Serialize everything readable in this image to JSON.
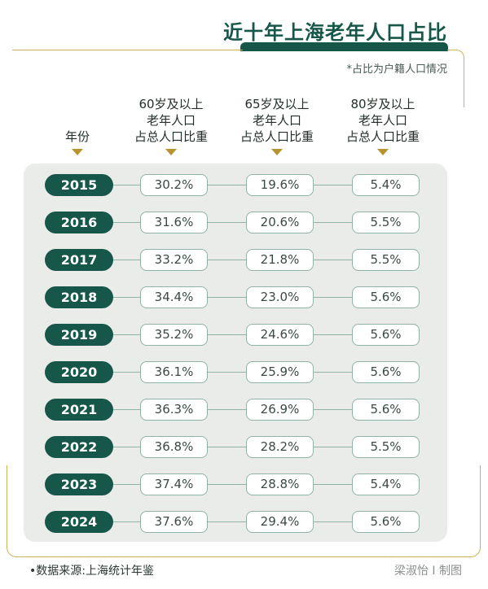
{
  "title": "近十年上海老年人口占比",
  "note": "*占比为户籍人口情况",
  "source": "•数据来源:上海统计年鉴",
  "credit": "梁淑怡 I 制图",
  "colors": {
    "primary": "#17574a",
    "accent": "#b8932f",
    "panel": "#eaecea",
    "border": "#8fb3a6"
  },
  "chart_data": {
    "type": "table",
    "columns": [
      "年份",
      "60岁及以上\n老年人口\n占总人口比重",
      "65岁及以上\n老年人口\n占总人口比重",
      "80岁及以上\n老年人口\n占总人口比重"
    ],
    "rows": [
      [
        "2015",
        "30.2%",
        "19.6%",
        "5.4%"
      ],
      [
        "2016",
        "31.6%",
        "20.6%",
        "5.5%"
      ],
      [
        "2017",
        "33.2%",
        "21.8%",
        "5.5%"
      ],
      [
        "2018",
        "34.4%",
        "23.0%",
        "5.6%"
      ],
      [
        "2019",
        "35.2%",
        "24.6%",
        "5.6%"
      ],
      [
        "2020",
        "36.1%",
        "25.9%",
        "5.6%"
      ],
      [
        "2021",
        "36.3%",
        "26.9%",
        "5.6%"
      ],
      [
        "2022",
        "36.8%",
        "28.2%",
        "5.5%"
      ],
      [
        "2023",
        "37.4%",
        "28.8%",
        "5.4%"
      ],
      [
        "2024",
        "37.6%",
        "29.4%",
        "5.6%"
      ]
    ]
  }
}
